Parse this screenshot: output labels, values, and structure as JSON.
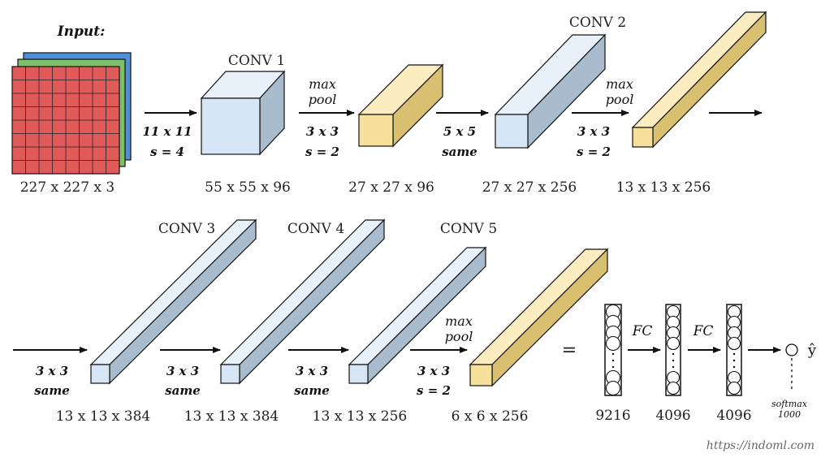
{
  "input": {
    "title": "Input:",
    "dims": "227 x 227 x 3",
    "channel_colors": [
      "#4f8fd8",
      "#7fbf6a",
      "#e05a5a"
    ]
  },
  "colors": {
    "conv_face": "#d7e6f6",
    "conv_top": "#e8f1fa",
    "conv_side": "#a9bccd",
    "pool_face": "#f7e09a",
    "pool_top": "#fbedc0",
    "pool_side": "#d9bf70"
  },
  "row1": {
    "conv1": {
      "name": "CONV 1",
      "dims": "55 x 55 x 96",
      "op_top": "11 x 11",
      "op_bottom": "s = 4"
    },
    "pool1": {
      "dims": "27 x 27 x 96",
      "op_top_1": "max",
      "op_top_2": "pool",
      "op_top": "3 x 3",
      "op_bottom": "s = 2"
    },
    "conv2": {
      "name": "CONV 2",
      "dims": "27 x 27 x 256",
      "op_top": "5 x 5",
      "op_bottom": "same"
    },
    "pool2": {
      "dims": "13 x 13 x 256",
      "op_top_1": "max",
      "op_top_2": "pool",
      "op_top": "3 x 3",
      "op_bottom": "s = 2"
    }
  },
  "row2": {
    "conv3": {
      "name": "CONV 3",
      "dims": "13 x 13 x 384",
      "op_top": "3 x 3",
      "op_bottom": "same"
    },
    "conv4": {
      "name": "CONV 4",
      "dims": "13 x 13 x 384",
      "op_top": "3 x 3",
      "op_bottom": "same"
    },
    "conv5": {
      "name": "CONV 5",
      "dims": "13 x 13 x 256",
      "op_top": "3 x 3",
      "op_bottom": "same"
    },
    "pool3": {
      "dims": "6 x 6 x 256",
      "op_top_1": "max",
      "op_top_2": "pool",
      "op_top": "3 x 3",
      "op_bottom": "s = 2"
    }
  },
  "fc": {
    "equals": "=",
    "layer1_size": "9216",
    "fc_label_1": "FC",
    "layer2_size": "4096",
    "fc_label_2": "FC",
    "layer3_size": "4096",
    "output_symbol": "ŷ",
    "softmax": "softmax",
    "softmax_size": "1000"
  },
  "watermark": "https://indoml.com"
}
